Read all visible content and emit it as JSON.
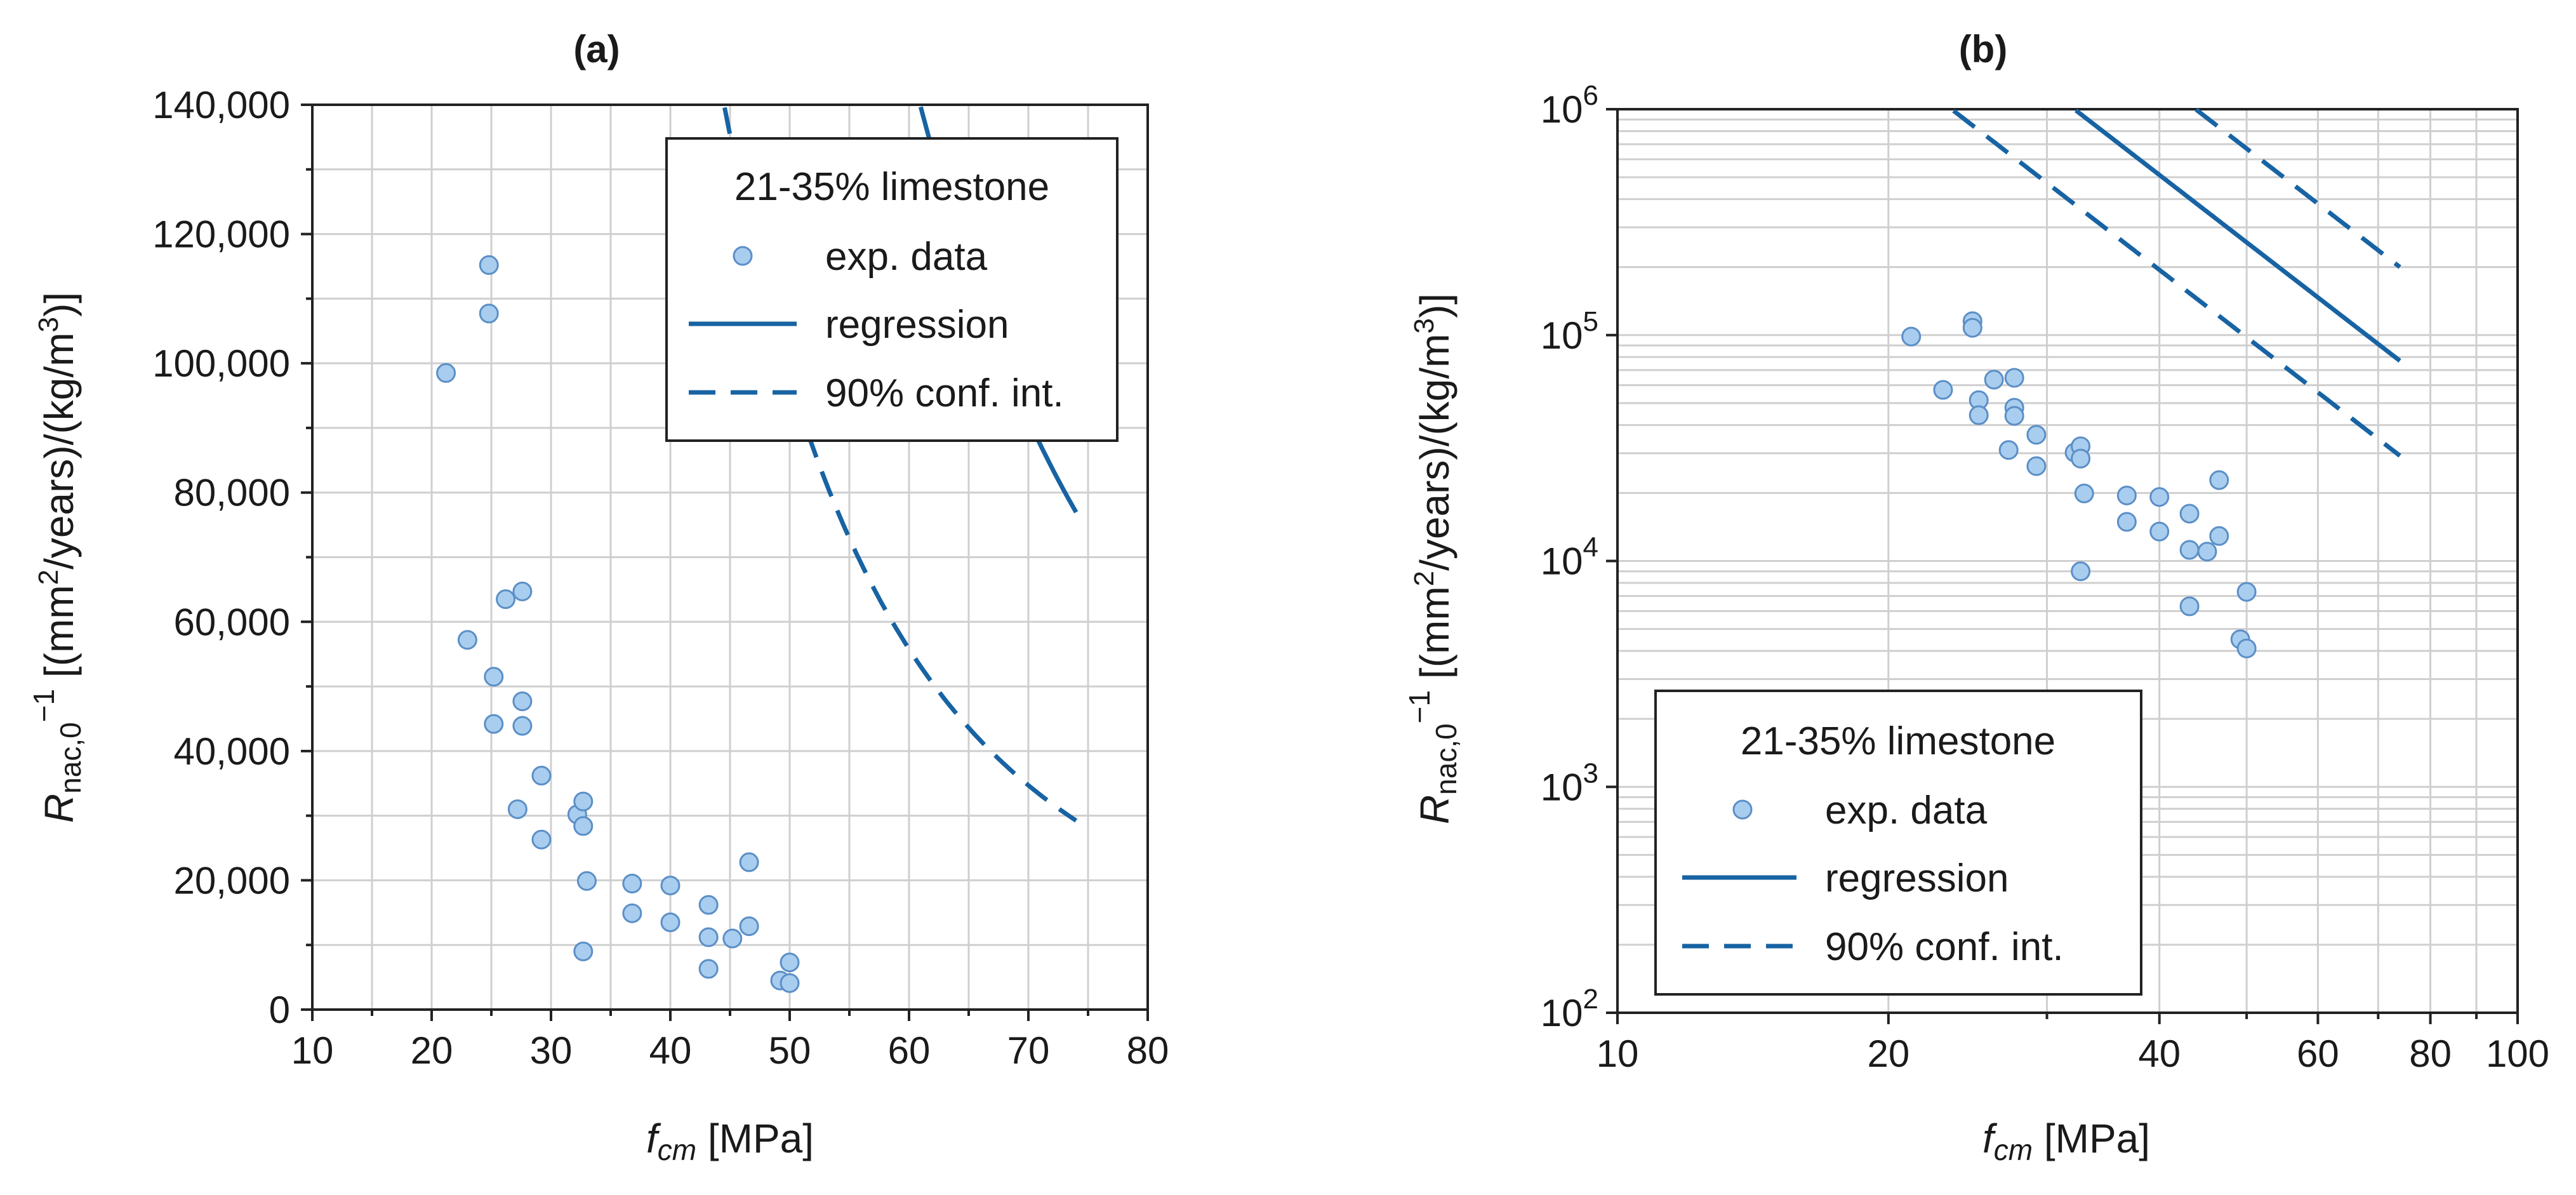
{
  "chart_data": [
    {
      "type": "scatter",
      "panel_label": "(a)",
      "xscale": "linear",
      "yscale": "linear",
      "xlim": [
        10,
        80
      ],
      "ylim": [
        0,
        140000
      ],
      "xticks": [
        10,
        20,
        30,
        40,
        50,
        60,
        70,
        80
      ],
      "xtick_labels": [
        "10",
        "20",
        "30",
        "40",
        "50",
        "60",
        "70",
        "80"
      ],
      "yticks": [
        0,
        20000,
        40000,
        60000,
        80000,
        100000,
        120000,
        140000
      ],
      "ytick_labels": [
        "0",
        "20,000",
        "40,000",
        "60,000",
        "80,000",
        "100,000",
        "120,000",
        "140,000"
      ],
      "xlabel": {
        "var": "f",
        "sub": "cm",
        "unit": " [MPa]"
      },
      "ylabel": {
        "var": "R",
        "sub": "nac,0",
        "sup": "−1",
        "unit_a": " [(mm",
        "unit_b": "2",
        "unit_c": "/years)/(kg/m",
        "unit_d": "3",
        "unit_e": ")]"
      },
      "legend": {
        "position": "top-right",
        "title": "21-35% limestone",
        "entries": [
          "exp. data",
          "regression",
          "90% conf. int."
        ]
      },
      "grid": true,
      "model": {
        "form": "R = a * fcm^b",
        "a": 44000000000.0,
        "b": -3.08,
        "ci_factor_upper": 2.6,
        "ci_factor_lower": 0.38,
        "x_start": 12,
        "x_end": 74
      },
      "points": [
        {
          "x": 21.2,
          "y": 98500
        },
        {
          "x": 23.0,
          "y": 57200
        },
        {
          "x": 24.8,
          "y": 115200
        },
        {
          "x": 24.8,
          "y": 107700
        },
        {
          "x": 25.2,
          "y": 51500
        },
        {
          "x": 25.2,
          "y": 44200
        },
        {
          "x": 26.2,
          "y": 63500
        },
        {
          "x": 27.6,
          "y": 64700
        },
        {
          "x": 27.6,
          "y": 47700
        },
        {
          "x": 27.6,
          "y": 43900
        },
        {
          "x": 27.2,
          "y": 31000
        },
        {
          "x": 29.2,
          "y": 36200
        },
        {
          "x": 29.2,
          "y": 26300
        },
        {
          "x": 32.2,
          "y": 30200
        },
        {
          "x": 32.7,
          "y": 32200
        },
        {
          "x": 32.7,
          "y": 28400
        },
        {
          "x": 32.7,
          "y": 9000
        },
        {
          "x": 33.0,
          "y": 19900
        },
        {
          "x": 36.8,
          "y": 19500
        },
        {
          "x": 36.8,
          "y": 14900
        },
        {
          "x": 40.0,
          "y": 19200
        },
        {
          "x": 40.0,
          "y": 13500
        },
        {
          "x": 43.2,
          "y": 16200
        },
        {
          "x": 43.2,
          "y": 11200
        },
        {
          "x": 43.2,
          "y": 6300
        },
        {
          "x": 45.2,
          "y": 11000
        },
        {
          "x": 46.6,
          "y": 22800
        },
        {
          "x": 46.6,
          "y": 12900
        },
        {
          "x": 49.2,
          "y": 4500
        },
        {
          "x": 50.0,
          "y": 7300
        },
        {
          "x": 50.0,
          "y": 4100
        }
      ]
    },
    {
      "type": "scatter",
      "panel_label": "(b)",
      "xscale": "log",
      "yscale": "log",
      "xlim": [
        10,
        100
      ],
      "ylim": [
        100,
        1000000
      ],
      "xticks": [
        10,
        20,
        40,
        60,
        80,
        100
      ],
      "xtick_labels": [
        "10",
        "20",
        "40",
        "60",
        "80",
        "100"
      ],
      "yticks": [
        100,
        1000,
        10000,
        100000,
        1000000
      ],
      "ytick_labels": [
        {
          "base": "10",
          "exp": "2"
        },
        {
          "base": "10",
          "exp": "3"
        },
        {
          "base": "10",
          "exp": "4"
        },
        {
          "base": "10",
          "exp": "5"
        },
        {
          "base": "10",
          "exp": "6"
        }
      ],
      "xlabel": {
        "var": "f",
        "sub": "cm",
        "unit": " [MPa]"
      },
      "ylabel": {
        "var": "R",
        "sub": "nac,0",
        "sup": "−1",
        "unit_a": " [(mm",
        "unit_b": "2",
        "unit_c": "/years)/(kg/m",
        "unit_d": "3",
        "unit_e": ")]"
      },
      "legend": {
        "position": "bottom-left",
        "title": "21-35% limestone",
        "entries": [
          "exp. data",
          "regression",
          "90% conf. int."
        ]
      },
      "grid": true,
      "model": {
        "form": "R = a * fcm^b",
        "a": 44000000000.0,
        "b": -3.08,
        "ci_factor_upper": 2.6,
        "ci_factor_lower": 0.38,
        "x_start": 12,
        "x_end": 74
      },
      "points": "same as panel (a)"
    }
  ]
}
